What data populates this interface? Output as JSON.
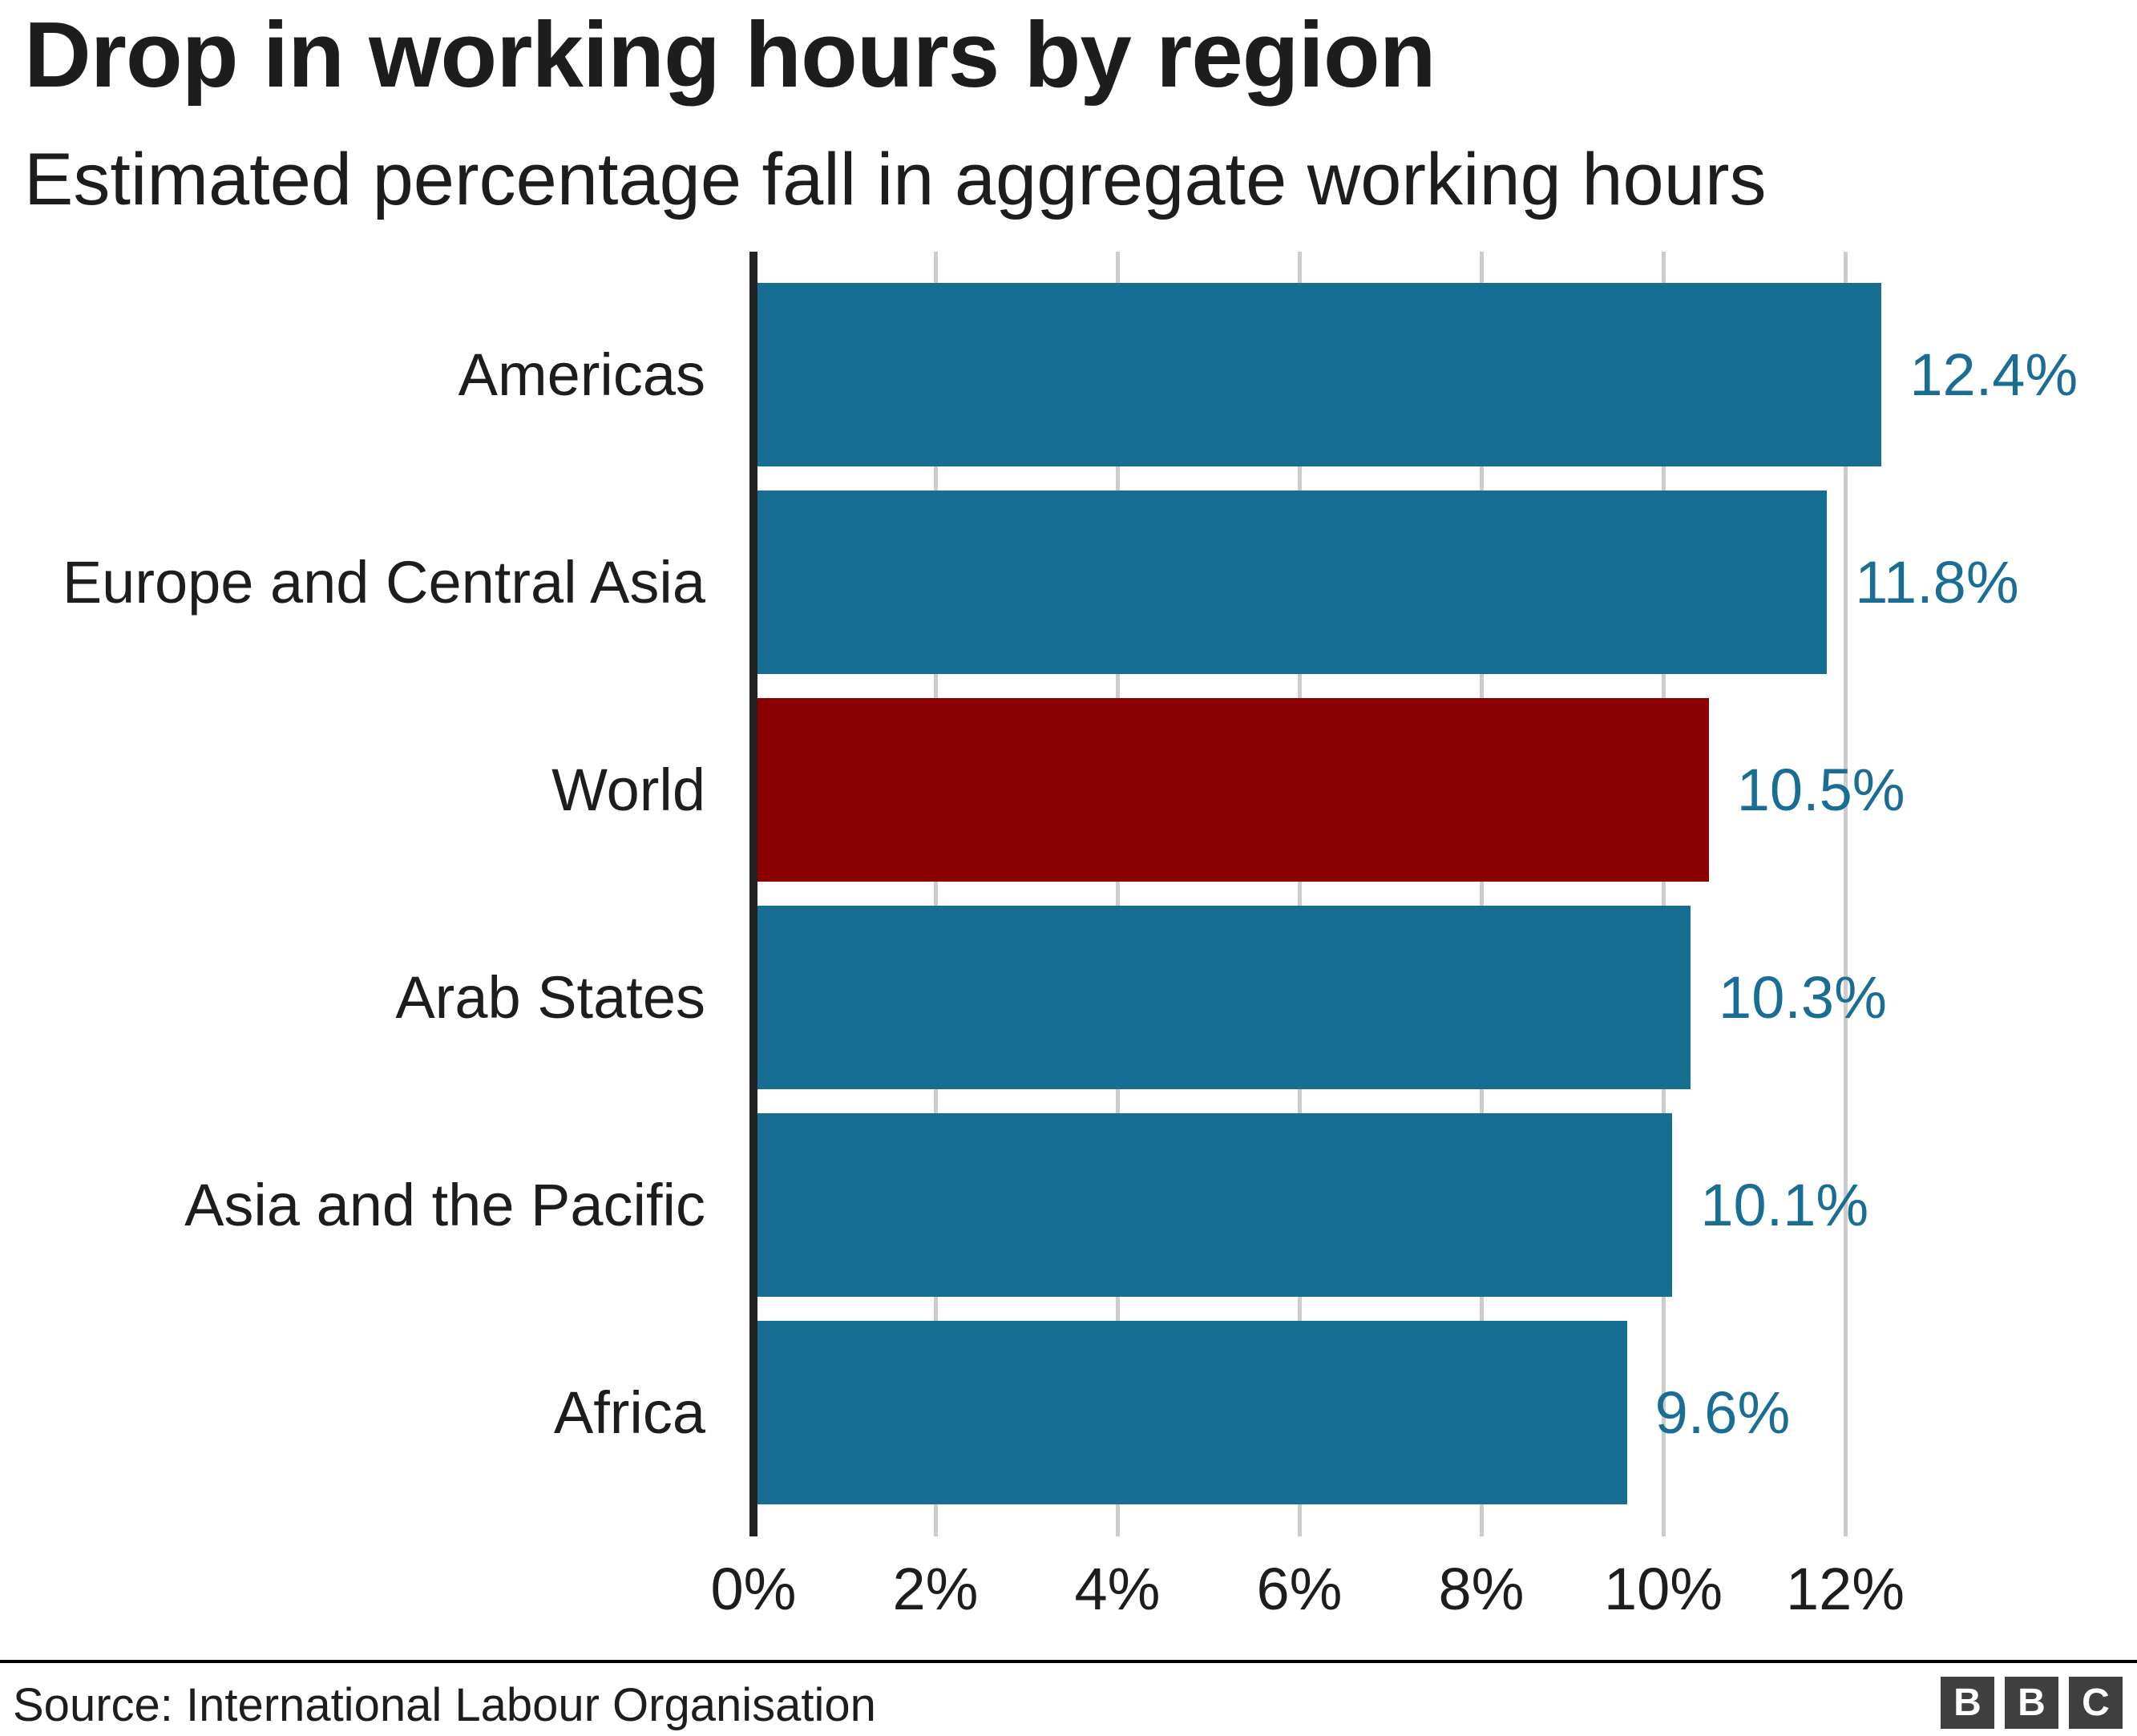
{
  "header": {
    "title": "Drop in working hours by region",
    "subtitle": "Estimated percentage fall in aggregate working hours"
  },
  "footer": {
    "source": "Source: International Labour Organisation",
    "logo_letters": [
      "B",
      "B",
      "C"
    ]
  },
  "colors": {
    "bar": "#166F93",
    "highlight_bar": "#8B0000",
    "value_label": "#1B6E93",
    "text": "#1D1D1D",
    "gridline": "#CCCCCC",
    "axis": "#222222",
    "logo_bg": "#3F3F3F",
    "logo_letter": "#FFFFFF"
  },
  "chart_data": {
    "type": "bar",
    "orientation": "horizontal",
    "title": "Drop in working hours by region",
    "subtitle": "Estimated percentage fall in aggregate working hours",
    "categories": [
      "Americas",
      "Europe and Central Asia",
      "World",
      "Arab States",
      "Asia and the Pacific",
      "Africa"
    ],
    "values": [
      12.4,
      11.8,
      10.5,
      10.3,
      10.1,
      9.6
    ],
    "value_labels": [
      "12.4%",
      "11.8%",
      "10.5%",
      "10.3%",
      "10.1%",
      "9.6%"
    ],
    "highlight_category": "World",
    "unit": "%",
    "x_ticks": [
      0,
      2,
      4,
      6,
      8,
      10,
      12
    ],
    "x_tick_labels": [
      "0%",
      "2%",
      "4%",
      "6%",
      "8%",
      "10%",
      "12%"
    ],
    "xlim": [
      0,
      12
    ],
    "grid": true,
    "legend": "none"
  }
}
